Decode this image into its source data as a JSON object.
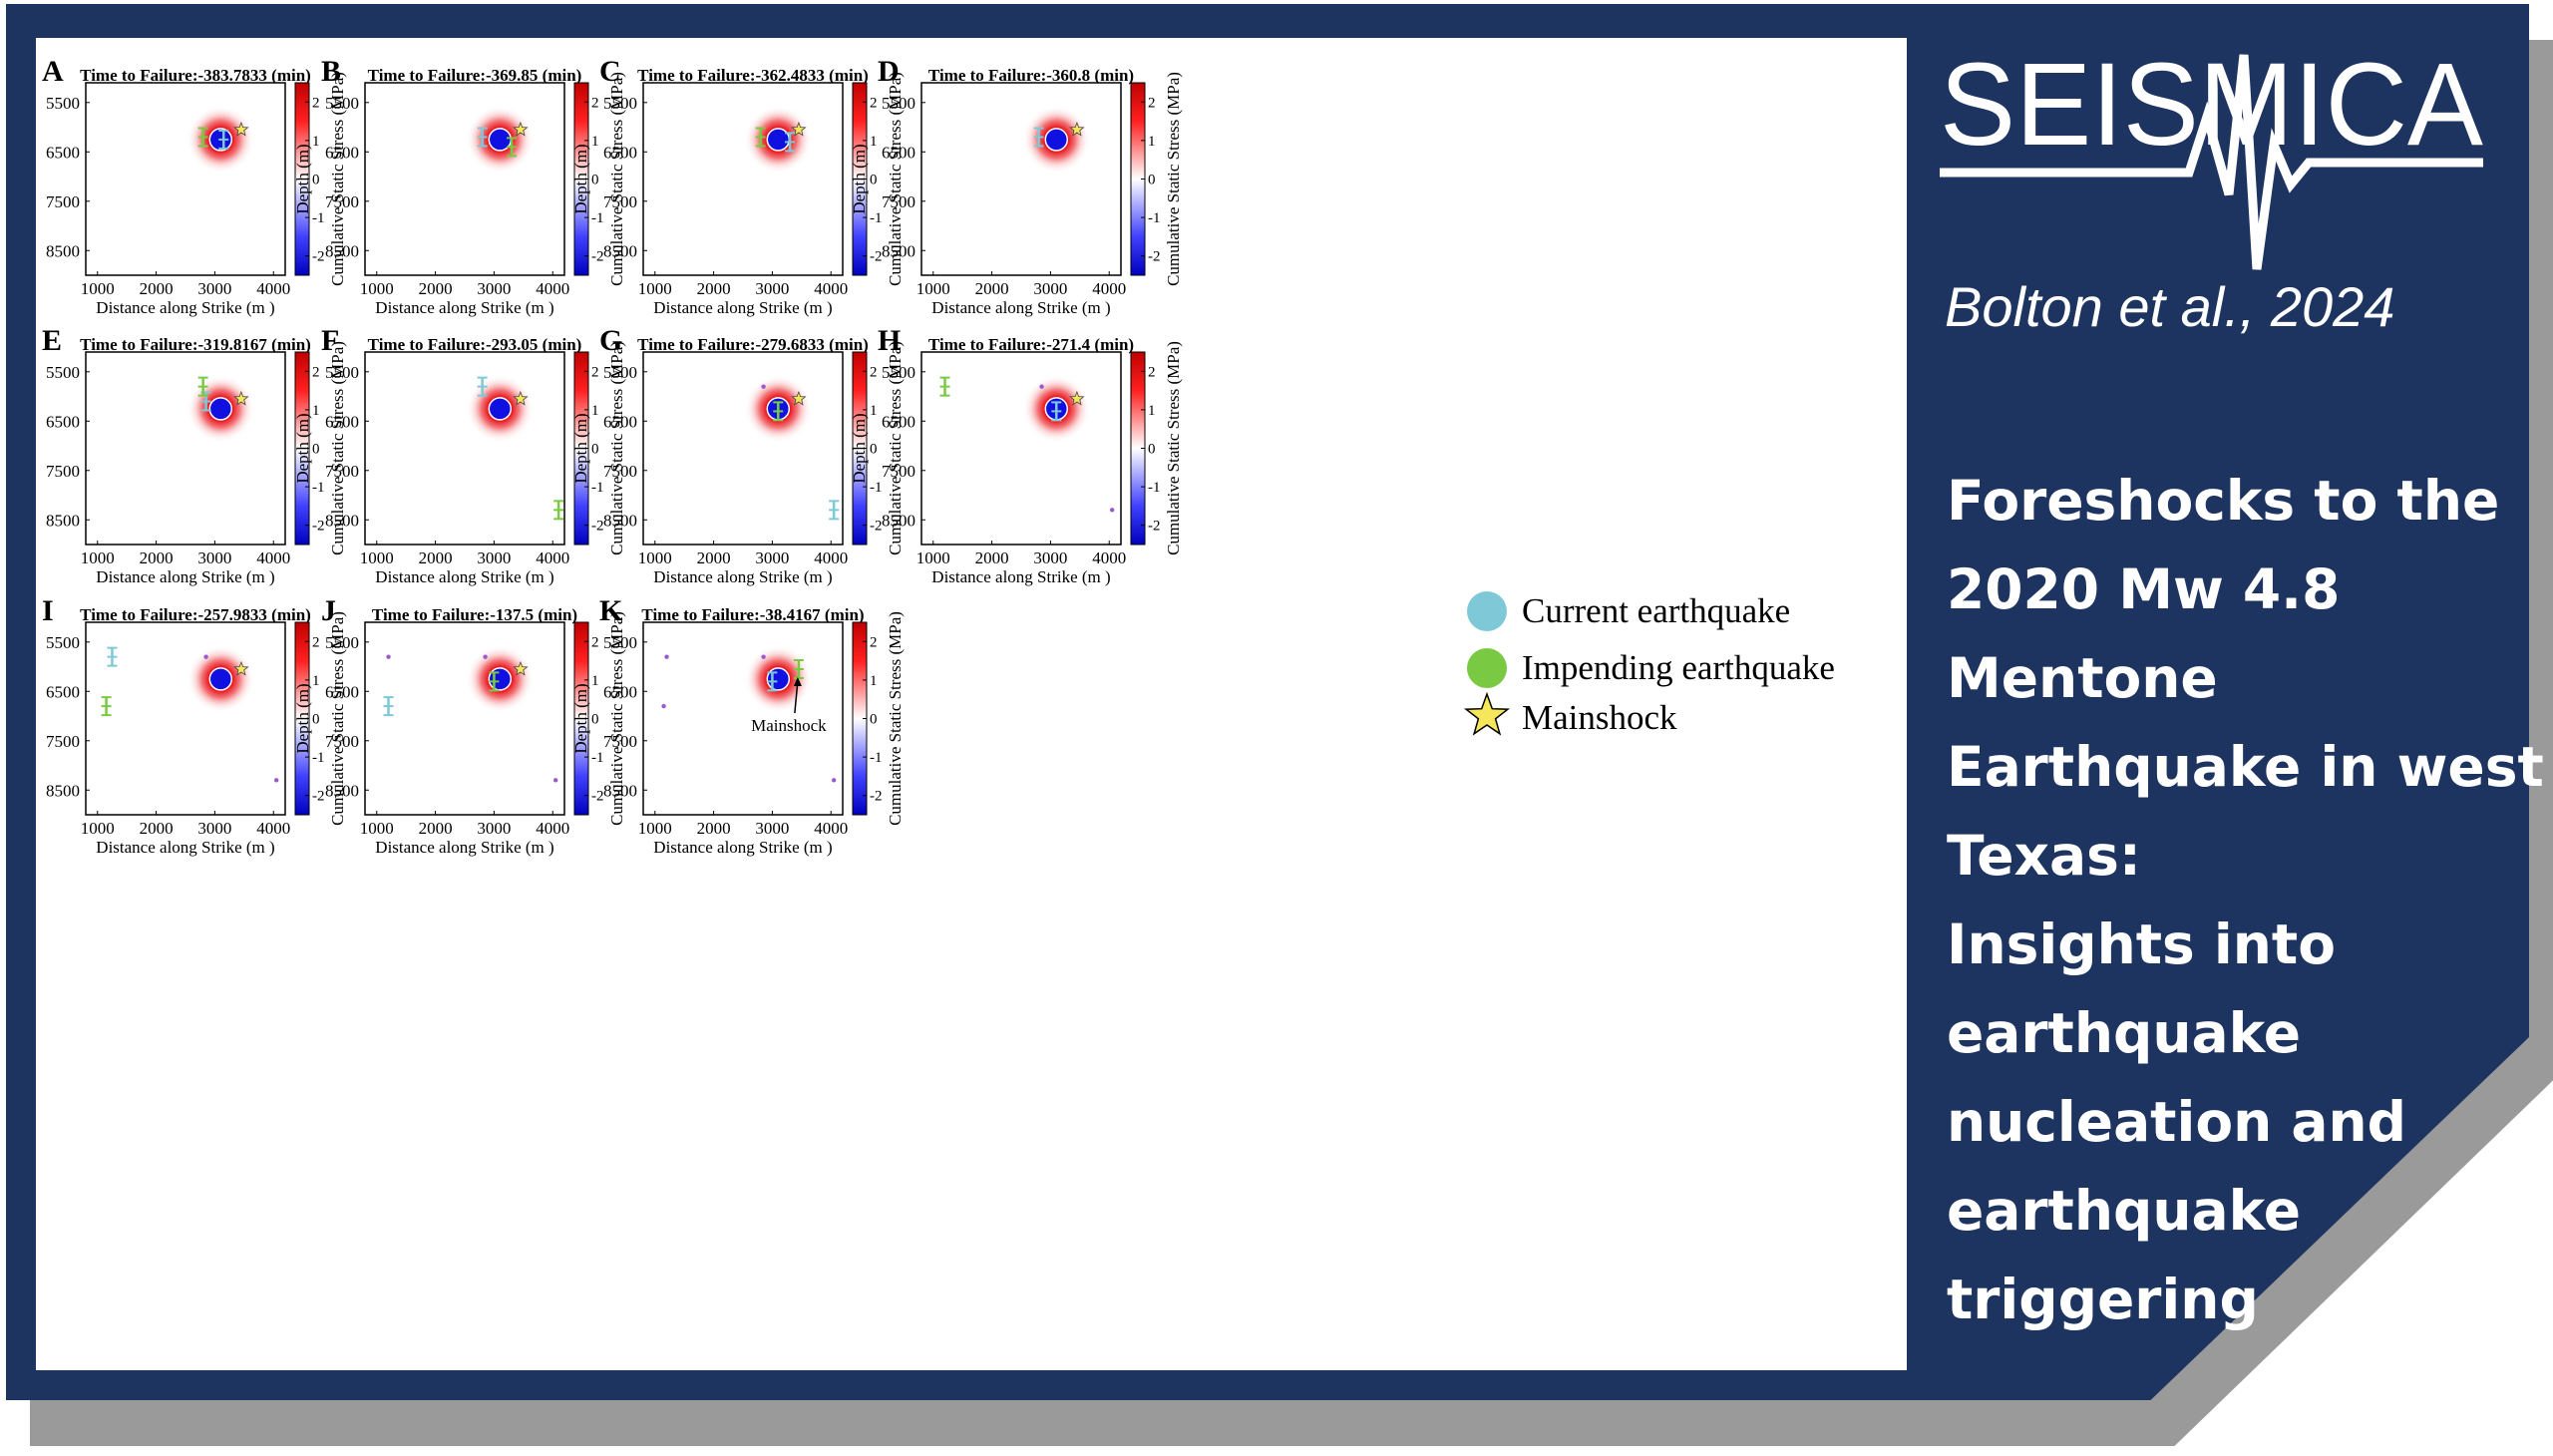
{
  "brand": {
    "journal": "SEISMICA",
    "citation": "Bolton et al., 2024"
  },
  "headline_lines": [
    "Foreshocks to the",
    "2020 Mw 4.8",
    "Mentone",
    "Earthquake in west",
    "Texas:",
    "Insights into",
    "earthquake",
    "nucleation and",
    "earthquake",
    "triggering"
  ],
  "colors": {
    "background": "#1d3461",
    "current": "#7ec8d8",
    "impending": "#7ac943",
    "mainshock": "#f5e65b",
    "stress_pos": "#e8151b",
    "stress_neg": "#1010e0",
    "shadow": "#9a9a9a"
  },
  "chart_data": {
    "type": "heatmap",
    "xlabel": "Distance along Strike (m )",
    "ylabel": "Depth (m)",
    "colorbar_label": "Cumulative Static Stress (MPa)",
    "xlim": [
      800,
      4200
    ],
    "ylim": [
      5100,
      9000
    ],
    "xticks": [
      "1000",
      "2000",
      "3000",
      "4000"
    ],
    "yticks": [
      "5500",
      "6500",
      "7500",
      "8500"
    ],
    "colorbar_ticks": [
      "2",
      "1",
      "0",
      "-1",
      "-2"
    ],
    "colorbar_range": [
      -2.5,
      2.5
    ],
    "mainshock_location": {
      "x": 3450,
      "y": 6050
    },
    "panels": [
      {
        "id": "A",
        "title": "Time to Failure:-383.7833 (min)",
        "current": [
          {
            "x": 3150,
            "y": 6250
          }
        ],
        "impending": [
          {
            "x": 2800,
            "y": 6200
          }
        ],
        "minor": []
      },
      {
        "id": "B",
        "title": "Time to Failure:-369.85 (min)",
        "current": [
          {
            "x": 2800,
            "y": 6200
          }
        ],
        "impending": [
          {
            "x": 3300,
            "y": 6400
          }
        ],
        "minor": []
      },
      {
        "id": "C",
        "title": "Time to Failure:-362.4833 (min)",
        "current": [
          {
            "x": 3300,
            "y": 6300
          }
        ],
        "impending": [
          {
            "x": 2800,
            "y": 6200
          }
        ],
        "minor": []
      },
      {
        "id": "D",
        "title": "Time to Failure:-360.8 (min)",
        "current": [
          {
            "x": 2800,
            "y": 6200
          }
        ],
        "impending": [],
        "minor": []
      },
      {
        "id": "E",
        "title": "Time to Failure:-319.8167 (min)",
        "current": [
          {
            "x": 2850,
            "y": 6100
          }
        ],
        "impending": [
          {
            "x": 2800,
            "y": 5800
          }
        ],
        "minor": []
      },
      {
        "id": "F",
        "title": "Time to Failure:-293.05 (min)",
        "current": [
          {
            "x": 2800,
            "y": 5800
          }
        ],
        "impending": [
          {
            "x": 4100,
            "y": 8300
          }
        ],
        "minor": []
      },
      {
        "id": "G",
        "title": "Time to Failure:-279.6833 (min)",
        "current": [
          {
            "x": 4050,
            "y": 8300
          }
        ],
        "impending": [
          {
            "x": 3100,
            "y": 6300
          }
        ],
        "minor": [
          {
            "x": 2850,
            "y": 5800
          }
        ]
      },
      {
        "id": "H",
        "title": "Time to Failure:-271.4 (min)",
        "current": [
          {
            "x": 3100,
            "y": 6300
          }
        ],
        "impending": [
          {
            "x": 1200,
            "y": 5800
          }
        ],
        "minor": [
          {
            "x": 2850,
            "y": 5800
          },
          {
            "x": 4050,
            "y": 8300
          }
        ]
      },
      {
        "id": "I",
        "title": "Time to Failure:-257.9833 (min)",
        "current": [
          {
            "x": 1250,
            "y": 5800
          }
        ],
        "impending": [
          {
            "x": 1150,
            "y": 6800
          }
        ],
        "minor": [
          {
            "x": 2850,
            "y": 5800
          },
          {
            "x": 4050,
            "y": 8300
          }
        ]
      },
      {
        "id": "J",
        "title": "Time to Failure:-137.5 (min)",
        "current": [
          {
            "x": 1200,
            "y": 6800
          }
        ],
        "impending": [
          {
            "x": 3000,
            "y": 6300
          }
        ],
        "minor": [
          {
            "x": 1200,
            "y": 5800
          },
          {
            "x": 2850,
            "y": 5800
          },
          {
            "x": 4050,
            "y": 8300
          }
        ]
      },
      {
        "id": "K",
        "title": "Time to Failure:-38.4167 (min)",
        "current": [
          {
            "x": 3000,
            "y": 6300
          }
        ],
        "impending": [
          {
            "x": 3450,
            "y": 6050
          }
        ],
        "minor": [
          {
            "x": 1200,
            "y": 5800
          },
          {
            "x": 1150,
            "y": 6800
          },
          {
            "x": 2850,
            "y": 5800
          },
          {
            "x": 4050,
            "y": 8300
          }
        ],
        "annotation": "Mainshock"
      }
    ],
    "legend": [
      {
        "label": "Current earthquake",
        "marker": "circle"
      },
      {
        "label": "Impending earthquake",
        "marker": "circle"
      },
      {
        "label": "Mainshock",
        "marker": "star"
      }
    ]
  }
}
